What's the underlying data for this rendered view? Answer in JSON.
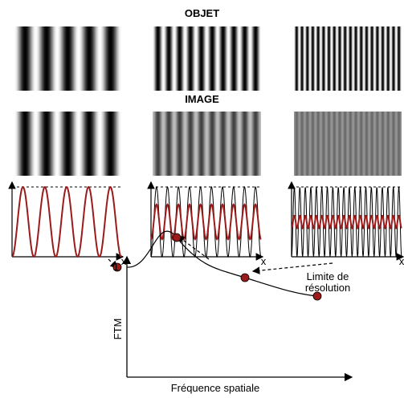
{
  "titles": {
    "object": "OBJET",
    "image": "IMAGE"
  },
  "axes": {
    "x_symbol": "x",
    "mtf_ylabel": "FTM",
    "mtf_xlabel": "Fréquence spatiale",
    "mtf_y_tick": "1"
  },
  "annotation": {
    "line1": "Limite de",
    "line2": "résolution"
  },
  "colors": {
    "image_profile": "#9b1b1b",
    "object_profile": "#000000",
    "marker_fill": "#9b1b1b"
  },
  "patterns": [
    {
      "name": "low",
      "cycles": 5,
      "image_contrast": 1.0
    },
    {
      "name": "mid",
      "cycles": 10,
      "image_contrast": 0.5
    },
    {
      "name": "high",
      "cycles": 20,
      "image_contrast": 0.18
    }
  ]
}
